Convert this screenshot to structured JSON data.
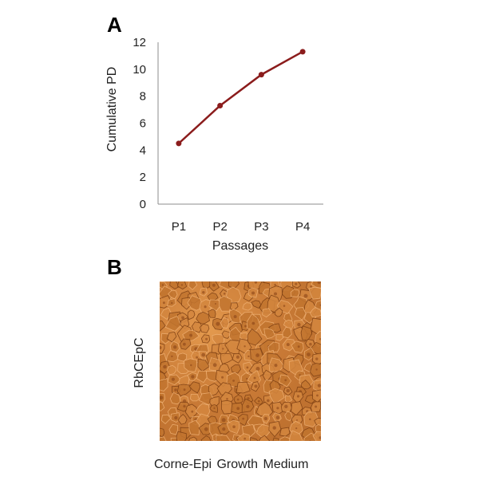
{
  "panels": {
    "a_label": "A",
    "b_label": "B"
  },
  "chart_data": {
    "type": "line",
    "title": "",
    "xlabel": "Passages",
    "ylabel": "Cumulative PD",
    "categories": [
      "P1",
      "P2",
      "P3",
      "P4"
    ],
    "series": [
      {
        "values": [
          4.5,
          7.3,
          9.6,
          11.3
        ],
        "color": "#8b1c1c"
      }
    ],
    "ylim": [
      0,
      12
    ],
    "yticks": [
      0,
      2,
      4,
      6,
      8,
      10,
      12
    ],
    "grid": false,
    "legend": "none"
  },
  "image_panel": {
    "row_label": "RbCEpC",
    "caption": "Corne-Epi  Growth Medium",
    "tint": "#c97a36"
  }
}
